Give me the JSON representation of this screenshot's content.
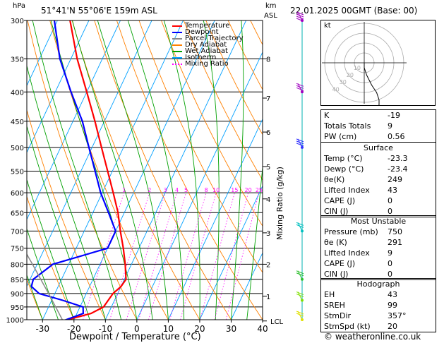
{
  "header": {
    "hpa_label": "hPa",
    "location": "51°41'N 55°06'E 159m ASL",
    "km_label": "km",
    "asl_label": "ASL",
    "datetime": "22.01.2025 00GMT (Base: 00)",
    "mixing_ratio_label": "Mixing Ratio (g/kg)",
    "copyright": "© weatheronline.co.uk"
  },
  "legend": [
    {
      "label": "Temperature",
      "color": "#ff0000",
      "style": "solid"
    },
    {
      "label": "Dewpoint",
      "color": "#0000ff",
      "style": "solid"
    },
    {
      "label": "Parcel Trajectory",
      "color": "#888888",
      "style": "solid"
    },
    {
      "label": "Dry Adiabat",
      "color": "#ff8000",
      "style": "solid"
    },
    {
      "label": "Wet Adiabat",
      "color": "#00a000",
      "style": "solid"
    },
    {
      "label": "Isotherm",
      "color": "#00a0ff",
      "style": "solid"
    },
    {
      "label": "Mixing Ratio",
      "color": "#ff00ff",
      "style": "dotted"
    }
  ],
  "hodograph": {
    "kt_label": "kt",
    "ring_labels": [
      "10",
      "20",
      "30",
      "40"
    ],
    "points_u_v_kt": [
      [
        0,
        0
      ],
      [
        0,
        -2
      ],
      [
        1,
        -5
      ],
      [
        3,
        -9
      ],
      [
        5,
        -12
      ],
      [
        6,
        -15
      ],
      [
        6,
        -17
      ],
      [
        5,
        -19
      ]
    ]
  },
  "indices": {
    "top": [
      {
        "k": "K",
        "v": "-19"
      },
      {
        "k": "Totals Totals",
        "v": "9"
      },
      {
        "k": "PW (cm)",
        "v": "0.56"
      }
    ],
    "surface_title": "Surface",
    "surface": [
      {
        "k": "Temp (°C)",
        "v": "-23.3"
      },
      {
        "k": "Dewp (°C)",
        "v": "-23.4"
      },
      {
        "k": "θe(K)",
        "v": "249"
      },
      {
        "k": "Lifted Index",
        "v": "43"
      },
      {
        "k": "CAPE (J)",
        "v": "0"
      },
      {
        "k": "CIN (J)",
        "v": "0"
      }
    ],
    "unstable_title": "Most Unstable",
    "unstable": [
      {
        "k": "Pressure (mb)",
        "v": "750"
      },
      {
        "k": "θe (K)",
        "v": "291"
      },
      {
        "k": "Lifted Index",
        "v": "9"
      },
      {
        "k": "CAPE (J)",
        "v": "0"
      },
      {
        "k": "CIN (J)",
        "v": "0"
      }
    ],
    "hodo_title": "Hodograph",
    "hodo": [
      {
        "k": "EH",
        "v": "43"
      },
      {
        "k": "SREH",
        "v": "99"
      },
      {
        "k": "StmDir",
        "v": "357°"
      },
      {
        "k": "StmSpd (kt)",
        "v": "20"
      }
    ]
  },
  "chart_data": {
    "type": "line",
    "title": "",
    "xlabel": "Dewpoint / Temperature (°C)",
    "ylabel": "hPa",
    "xlim": [
      -35,
      40
    ],
    "ylim": [
      1000,
      300
    ],
    "y_scale": "log-pressure",
    "skew": true,
    "pressure_ticks": [
      300,
      350,
      400,
      450,
      500,
      550,
      600,
      650,
      700,
      750,
      800,
      850,
      900,
      950,
      1000
    ],
    "temp_ticks": [
      -30,
      -20,
      -10,
      0,
      10,
      20,
      30,
      40
    ],
    "km_ticks": [
      {
        "label": "8",
        "p": 350
      },
      {
        "label": "7",
        "p": 410
      },
      {
        "label": "6",
        "p": 470
      },
      {
        "label": "5",
        "p": 540
      },
      {
        "label": "4",
        "p": 615
      },
      {
        "label": "3",
        "p": 705
      },
      {
        "label": "2",
        "p": 800
      },
      {
        "label": "1",
        "p": 910
      },
      {
        "label": "LCL",
        "p": 1005
      }
    ],
    "mixing_ratio_labels": [
      "1",
      "2",
      "3",
      "4",
      "5",
      "8",
      "10",
      "15",
      "20",
      "25"
    ],
    "mixing_ratio_values": [
      1,
      2,
      3,
      4,
      5,
      8,
      10,
      15,
      20,
      25
    ],
    "series": [
      {
        "name": "Temperature",
        "color": "#ff0000",
        "p": [
          1005,
          975,
          950,
          925,
          900,
          875,
          850,
          800,
          750,
          700,
          650,
          600,
          550,
          500,
          450,
          400,
          350,
          300
        ],
        "t": [
          -23.3,
          -15.5,
          -12.5,
          -12.0,
          -11.5,
          -10.0,
          -9.5,
          -12.0,
          -15.0,
          -18.5,
          -22.0,
          -26.5,
          -31.5,
          -37.0,
          -43.0,
          -50.0,
          -58.0,
          -66.0
        ]
      },
      {
        "name": "Dewpoint",
        "color": "#0000ff",
        "p": [
          1005,
          975,
          950,
          925,
          900,
          875,
          850,
          800,
          750,
          700,
          650,
          600,
          550,
          500,
          450,
          400,
          350,
          300
        ],
        "t": [
          -23.4,
          -18.0,
          -19.0,
          -26.5,
          -35.0,
          -38.5,
          -39.0,
          -35.0,
          -20.0,
          -20.0,
          -25.0,
          -30.5,
          -35.5,
          -41.0,
          -47.0,
          -55.0,
          -63.5,
          -71.0
        ]
      },
      {
        "name": "Parcel Trajectory",
        "color": "#888888",
        "p": [
          1005,
          900,
          800,
          700,
          600,
          500,
          400,
          300
        ],
        "t": [
          -23.3,
          -32.0,
          -41.5,
          -52.5,
          -65.0,
          -79.5,
          -97.0,
          -119.0
        ]
      }
    ],
    "wind_barbs": [
      {
        "p": 300,
        "color": "#a000c0",
        "flags": 4
      },
      {
        "p": 400,
        "color": "#a000c0",
        "flags": 3
      },
      {
        "p": 500,
        "color": "#3030ff",
        "flags": 3
      },
      {
        "p": 700,
        "color": "#00c0c0",
        "flags": 2
      },
      {
        "p": 850,
        "color": "#30c030",
        "flags": 2
      },
      {
        "p": 925,
        "color": "#80e000",
        "flags": 2
      },
      {
        "p": 1000,
        "color": "#e0e000",
        "flags": 2
      }
    ]
  }
}
